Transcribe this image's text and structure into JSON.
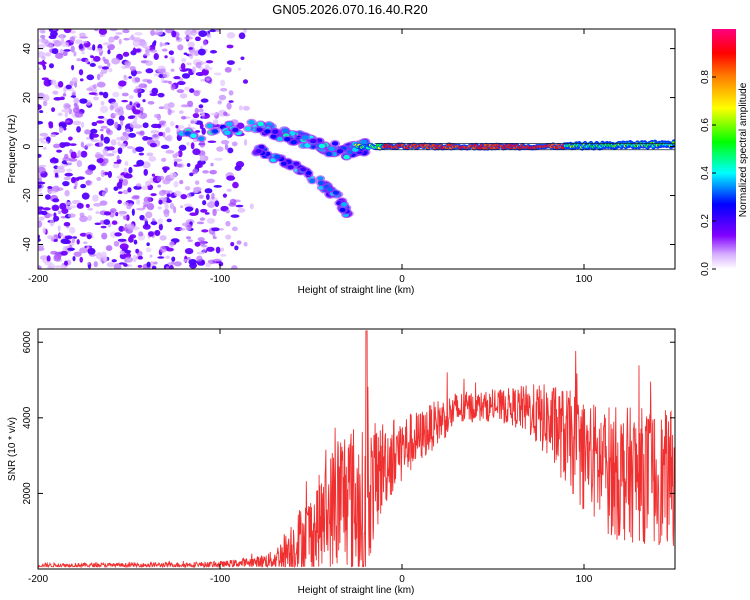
{
  "chart_data": [
    {
      "type": "heatmap",
      "title": "GN05.2026.070.16.40.R20",
      "xlabel": "Height of straight line (km)",
      "ylabel": "Frequency (Hz)",
      "xlim": [
        -200,
        150
      ],
      "ylim": [
        -50,
        48
      ],
      "xticks": [
        -200,
        -100,
        0,
        100
      ],
      "xtick_labels": [
        "-200",
        "-100",
        "0",
        "100"
      ],
      "yticks": [
        -40,
        -20,
        0,
        20,
        40
      ],
      "ytick_labels": [
        "-40",
        "-20",
        "0",
        "20",
        "40"
      ],
      "colorbar": {
        "label": "Normalized spectral amplitude",
        "range": [
          0,
          1
        ],
        "ticks": [
          0,
          0.2,
          0.4,
          0.6,
          0.8
        ],
        "tick_labels": [
          "0.0",
          "0.2",
          "0.4",
          "0.6",
          "0.8"
        ],
        "colormap": [
          "#ffffff",
          "#8000ff",
          "#0000ff",
          "#00ffff",
          "#00ff00",
          "#ffff00",
          "#ff8000",
          "#ff0000",
          "#ff0080"
        ]
      },
      "features": [
        {
          "name": "noise-field",
          "x_range": [
            -200,
            -90
          ],
          "freq_range": [
            -50,
            48
          ],
          "amplitude": 0.05
        },
        {
          "name": "upper-branch",
          "points": [
            [
              -120,
              5
            ],
            [
              -80,
              8
            ],
            [
              -60,
              4
            ],
            [
              -45,
              0
            ],
            [
              -30,
              -2
            ],
            [
              -20,
              0
            ]
          ],
          "amplitude": 0.35
        },
        {
          "name": "descending-branch",
          "points": [
            [
              -80,
              -1
            ],
            [
              -60,
              -8
            ],
            [
              -45,
              -14
            ],
            [
              -35,
              -21
            ],
            [
              -30,
              -28
            ]
          ],
          "amplitude": 0.3
        },
        {
          "name": "carrier-line",
          "points": [
            [
              -25,
              -1
            ],
            [
              0,
              0
            ],
            [
              50,
              0
            ],
            [
              100,
              0
            ],
            [
              150,
              1
            ]
          ],
          "amplitude": 0.85
        }
      ]
    },
    {
      "type": "line",
      "xlabel": "Height of straight line (km)",
      "ylabel": "SNR (10 * v/v)",
      "xlim": [
        -200,
        150
      ],
      "ylim": [
        0,
        6350
      ],
      "xticks": [
        -200,
        -100,
        0,
        100
      ],
      "xtick_labels": [
        "-200",
        "-100",
        "0",
        "100"
      ],
      "yticks": [
        2000,
        4000,
        6000
      ],
      "ytick_labels": [
        "2000",
        "4000",
        "6000"
      ],
      "color": "#f03030",
      "envelope": {
        "x": [
          -200,
          -150,
          -100,
          -80,
          -70,
          -60,
          -50,
          -40,
          -35,
          -30,
          -22,
          -20,
          -18,
          -10,
          0,
          10,
          20,
          30,
          40,
          50,
          60,
          70,
          80,
          90,
          100,
          110,
          120,
          130,
          140,
          150
        ],
        "baseline": [
          100,
          100,
          120,
          180,
          250,
          600,
          900,
          1500,
          1800,
          2000,
          1500,
          200,
          2000,
          2800,
          3200,
          3500,
          3900,
          4200,
          4300,
          4300,
          4300,
          4200,
          3900,
          3500,
          3000,
          2700,
          2500,
          2500,
          2400,
          2400
        ],
        "amplitude": [
          60,
          60,
          80,
          150,
          250,
          800,
          1200,
          1500,
          2000,
          2000,
          2200,
          3500,
          1800,
          1200,
          900,
          700,
          600,
          500,
          400,
          400,
          500,
          700,
          1000,
          1300,
          1500,
          1700,
          1800,
          1800,
          1800,
          1800
        ]
      }
    }
  ]
}
